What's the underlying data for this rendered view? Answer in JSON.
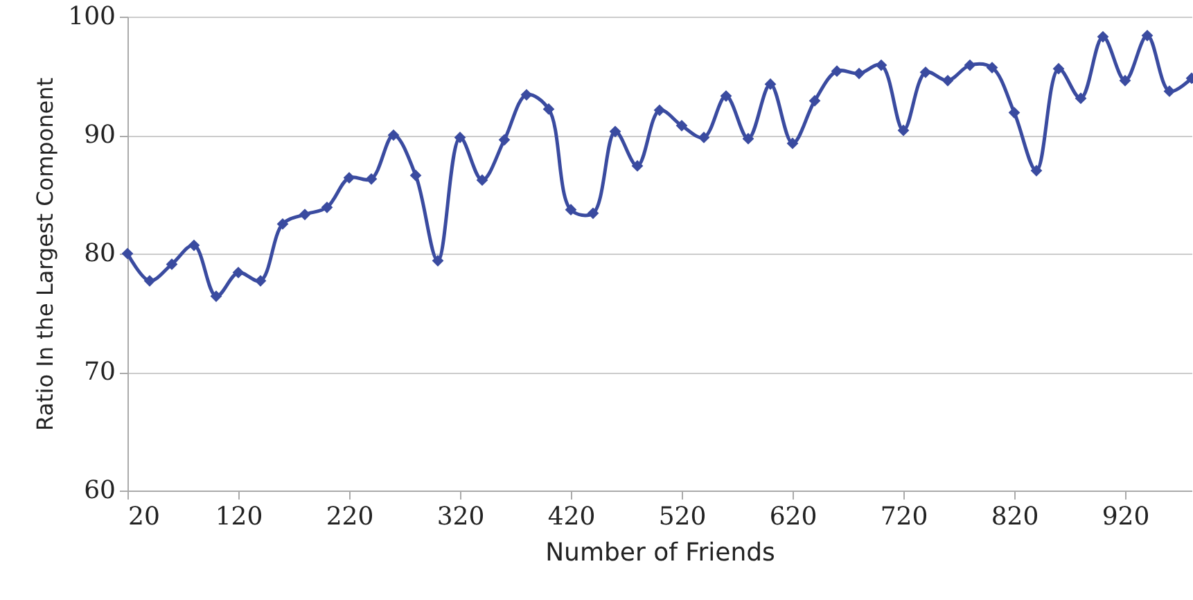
{
  "chart_data": {
    "type": "line",
    "xlabel": "Number of Friends",
    "ylabel": "Ratio In the Largest Component",
    "x": [
      20,
      40,
      60,
      80,
      100,
      120,
      140,
      160,
      180,
      200,
      220,
      240,
      260,
      280,
      300,
      320,
      340,
      360,
      380,
      400,
      420,
      440,
      460,
      480,
      500,
      520,
      540,
      560,
      580,
      600,
      620,
      640,
      660,
      680,
      700,
      720,
      740,
      760,
      780,
      800,
      820,
      840,
      860,
      880,
      900,
      920,
      940,
      960,
      980
    ],
    "series": [
      {
        "color": "#3a4ba0",
        "values": [
          80.0,
          77.7,
          79.1,
          80.7,
          76.4,
          78.4,
          77.7,
          82.5,
          83.3,
          83.9,
          86.4,
          86.3,
          90.0,
          86.6,
          79.4,
          89.8,
          86.2,
          89.6,
          93.4,
          92.2,
          83.7,
          83.4,
          90.3,
          87.4,
          92.1,
          90.8,
          89.8,
          93.3,
          89.7,
          94.3,
          89.3,
          92.9,
          95.4,
          95.2,
          95.9,
          90.4,
          95.3,
          94.6,
          95.9,
          95.7,
          91.9,
          87.0,
          95.6,
          93.1,
          98.3,
          94.6,
          98.4,
          93.7,
          94.8
        ]
      }
    ],
    "xlim": [
      20,
      980
    ],
    "xticks": [
      20,
      120,
      220,
      320,
      420,
      520,
      620,
      720,
      820,
      920
    ],
    "ylim": [
      60,
      100
    ],
    "yticks": [
      60,
      70,
      80,
      90,
      100
    ],
    "grid": "y",
    "marker": "diamond",
    "line_style": "solid"
  }
}
